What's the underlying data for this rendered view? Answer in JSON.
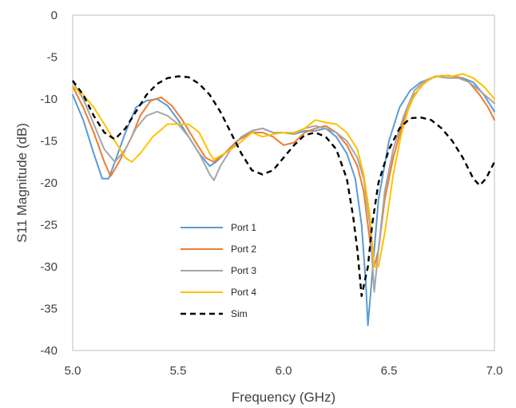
{
  "chart_data": {
    "type": "line",
    "title": "",
    "xlabel": "Frequency (GHz)",
    "ylabel": "S11 Magnitude (dB)",
    "xlim": [
      5.0,
      7.0
    ],
    "ylim": [
      -40,
      0
    ],
    "xticks": [
      "5.0",
      "5.5",
      "6.0",
      "6.5",
      "7.0"
    ],
    "yticks": [
      "0",
      "-5",
      "-10",
      "-15",
      "-20",
      "-25",
      "-30",
      "-35",
      "-40"
    ],
    "grid": false,
    "legend_position": "center-left",
    "series": [
      {
        "name": "Port 1",
        "color": "#5b9bd5",
        "dash": "solid",
        "points": [
          [
            5.0,
            -9.5
          ],
          [
            5.05,
            -12.5
          ],
          [
            5.1,
            -16.5
          ],
          [
            5.14,
            -19.5
          ],
          [
            5.17,
            -19.5
          ],
          [
            5.2,
            -17.5
          ],
          [
            5.25,
            -14
          ],
          [
            5.3,
            -11
          ],
          [
            5.35,
            -10.2
          ],
          [
            5.4,
            -10
          ],
          [
            5.45,
            -10.8
          ],
          [
            5.5,
            -12.5
          ],
          [
            5.55,
            -14.5
          ],
          [
            5.6,
            -16.5
          ],
          [
            5.65,
            -18
          ],
          [
            5.68,
            -17.5
          ],
          [
            5.72,
            -16.5
          ],
          [
            5.78,
            -15
          ],
          [
            5.85,
            -13.8
          ],
          [
            5.9,
            -13.5
          ],
          [
            5.95,
            -14
          ],
          [
            6.0,
            -14
          ],
          [
            6.05,
            -14.2
          ],
          [
            6.1,
            -13.8
          ],
          [
            6.15,
            -13.8
          ],
          [
            6.2,
            -13.5
          ],
          [
            6.25,
            -14.5
          ],
          [
            6.3,
            -16.5
          ],
          [
            6.34,
            -19.5
          ],
          [
            6.37,
            -25
          ],
          [
            6.39,
            -32
          ],
          [
            6.4,
            -37
          ],
          [
            6.42,
            -31
          ],
          [
            6.45,
            -22
          ],
          [
            6.5,
            -15
          ],
          [
            6.55,
            -11
          ],
          [
            6.6,
            -9
          ],
          [
            6.65,
            -8
          ],
          [
            6.7,
            -7.5
          ],
          [
            6.75,
            -7.2
          ],
          [
            6.8,
            -7.3
          ],
          [
            6.85,
            -7.5
          ],
          [
            6.9,
            -8
          ],
          [
            6.95,
            -9.5
          ],
          [
            7.0,
            -11.5
          ]
        ]
      },
      {
        "name": "Port 2",
        "color": "#ed7d31",
        "dash": "solid",
        "points": [
          [
            5.0,
            -8.5
          ],
          [
            5.05,
            -11
          ],
          [
            5.1,
            -14
          ],
          [
            5.15,
            -17.5
          ],
          [
            5.18,
            -19.2
          ],
          [
            5.22,
            -17.5
          ],
          [
            5.28,
            -14.5
          ],
          [
            5.32,
            -12
          ],
          [
            5.37,
            -10.2
          ],
          [
            5.42,
            -9.8
          ],
          [
            5.47,
            -10.8
          ],
          [
            5.52,
            -12.5
          ],
          [
            5.58,
            -15
          ],
          [
            5.63,
            -17
          ],
          [
            5.67,
            -17.5
          ],
          [
            5.72,
            -16.5
          ],
          [
            5.78,
            -15
          ],
          [
            5.85,
            -14
          ],
          [
            5.9,
            -14
          ],
          [
            5.95,
            -14.5
          ],
          [
            6.0,
            -15.5
          ],
          [
            6.05,
            -15.2
          ],
          [
            6.1,
            -14
          ],
          [
            6.15,
            -13.5
          ],
          [
            6.2,
            -13.2
          ],
          [
            6.25,
            -14
          ],
          [
            6.3,
            -15.5
          ],
          [
            6.35,
            -18
          ],
          [
            6.38,
            -21
          ],
          [
            6.41,
            -27
          ],
          [
            6.43,
            -30
          ],
          [
            6.45,
            -28
          ],
          [
            6.48,
            -22
          ],
          [
            6.52,
            -17
          ],
          [
            6.57,
            -12.5
          ],
          [
            6.62,
            -9.5
          ],
          [
            6.67,
            -8
          ],
          [
            6.72,
            -7.3
          ],
          [
            6.78,
            -7.2
          ],
          [
            6.83,
            -7.4
          ],
          [
            6.88,
            -8
          ],
          [
            6.93,
            -9.5
          ],
          [
            6.97,
            -11
          ],
          [
            7.0,
            -12.5
          ]
        ]
      },
      {
        "name": "Port 3",
        "color": "#a5a5a5",
        "dash": "solid",
        "points": [
          [
            5.0,
            -8
          ],
          [
            5.05,
            -10
          ],
          [
            5.1,
            -13
          ],
          [
            5.15,
            -16
          ],
          [
            5.2,
            -17.5
          ],
          [
            5.25,
            -16
          ],
          [
            5.3,
            -13.5
          ],
          [
            5.35,
            -12
          ],
          [
            5.4,
            -11.5
          ],
          [
            5.45,
            -12
          ],
          [
            5.5,
            -13
          ],
          [
            5.55,
            -14.5
          ],
          [
            5.6,
            -16.5
          ],
          [
            5.65,
            -19
          ],
          [
            5.67,
            -19.7
          ],
          [
            5.7,
            -18
          ],
          [
            5.75,
            -16
          ],
          [
            5.8,
            -14.5
          ],
          [
            5.85,
            -13.8
          ],
          [
            5.9,
            -13.5
          ],
          [
            5.95,
            -14
          ],
          [
            6.0,
            -14
          ],
          [
            6.05,
            -14.2
          ],
          [
            6.1,
            -13.5
          ],
          [
            6.15,
            -13.2
          ],
          [
            6.2,
            -13.5
          ],
          [
            6.25,
            -14
          ],
          [
            6.3,
            -15
          ],
          [
            6.35,
            -17
          ],
          [
            6.38,
            -19.5
          ],
          [
            6.41,
            -25
          ],
          [
            6.43,
            -33
          ],
          [
            6.45,
            -28
          ],
          [
            6.48,
            -21
          ],
          [
            6.52,
            -16
          ],
          [
            6.57,
            -12
          ],
          [
            6.62,
            -9
          ],
          [
            6.67,
            -7.8
          ],
          [
            6.72,
            -7.3
          ],
          [
            6.78,
            -7.5
          ],
          [
            6.83,
            -7.5
          ],
          [
            6.88,
            -8
          ],
          [
            6.93,
            -9
          ],
          [
            7.0,
            -10.5
          ]
        ]
      },
      {
        "name": "Port 4",
        "color": "#ffc000",
        "dash": "solid",
        "points": [
          [
            5.0,
            -8.5
          ],
          [
            5.05,
            -9.5
          ],
          [
            5.1,
            -11
          ],
          [
            5.15,
            -13
          ],
          [
            5.2,
            -15
          ],
          [
            5.25,
            -17
          ],
          [
            5.28,
            -17.5
          ],
          [
            5.32,
            -16.5
          ],
          [
            5.38,
            -14.5
          ],
          [
            5.45,
            -13
          ],
          [
            5.5,
            -13
          ],
          [
            5.55,
            -13
          ],
          [
            5.6,
            -14
          ],
          [
            5.65,
            -16.5
          ],
          [
            5.67,
            -17.2
          ],
          [
            5.72,
            -16.5
          ],
          [
            5.78,
            -15.5
          ],
          [
            5.85,
            -14
          ],
          [
            5.9,
            -14.5
          ],
          [
            5.95,
            -14.2
          ],
          [
            6.0,
            -14
          ],
          [
            6.05,
            -14
          ],
          [
            6.1,
            -13.5
          ],
          [
            6.15,
            -12.5
          ],
          [
            6.2,
            -12.8
          ],
          [
            6.25,
            -13
          ],
          [
            6.3,
            -14
          ],
          [
            6.35,
            -16
          ],
          [
            6.38,
            -19
          ],
          [
            6.41,
            -24
          ],
          [
            6.43,
            -30
          ],
          [
            6.45,
            -30
          ],
          [
            6.48,
            -26
          ],
          [
            6.52,
            -19
          ],
          [
            6.56,
            -14
          ],
          [
            6.6,
            -10.5
          ],
          [
            6.65,
            -8.5
          ],
          [
            6.7,
            -7.5
          ],
          [
            6.75,
            -7.2
          ],
          [
            6.8,
            -7.3
          ],
          [
            6.85,
            -7
          ],
          [
            6.9,
            -7.5
          ],
          [
            6.95,
            -8.5
          ],
          [
            7.0,
            -10
          ]
        ]
      },
      {
        "name": "Sim",
        "color": "#000000",
        "dash": "dashed",
        "points": [
          [
            5.0,
            -7.8
          ],
          [
            5.05,
            -9.5
          ],
          [
            5.1,
            -12
          ],
          [
            5.15,
            -14
          ],
          [
            5.2,
            -14.8
          ],
          [
            5.25,
            -13.5
          ],
          [
            5.3,
            -11.5
          ],
          [
            5.35,
            -9.5
          ],
          [
            5.4,
            -8.2
          ],
          [
            5.45,
            -7.5
          ],
          [
            5.5,
            -7.3
          ],
          [
            5.55,
            -7.4
          ],
          [
            5.6,
            -8.2
          ],
          [
            5.65,
            -9.5
          ],
          [
            5.7,
            -11.5
          ],
          [
            5.75,
            -14
          ],
          [
            5.8,
            -16.5
          ],
          [
            5.85,
            -18.5
          ],
          [
            5.9,
            -19
          ],
          [
            5.95,
            -18.5
          ],
          [
            6.0,
            -17
          ],
          [
            6.05,
            -15.5
          ],
          [
            6.1,
            -14.3
          ],
          [
            6.15,
            -14
          ],
          [
            6.2,
            -14.5
          ],
          [
            6.25,
            -16
          ],
          [
            6.3,
            -19.5
          ],
          [
            6.33,
            -24
          ],
          [
            6.35,
            -28
          ],
          [
            6.37,
            -33.5
          ],
          [
            6.4,
            -30
          ],
          [
            6.42,
            -25
          ],
          [
            6.45,
            -20
          ],
          [
            6.5,
            -16
          ],
          [
            6.55,
            -13.5
          ],
          [
            6.6,
            -12.3
          ],
          [
            6.65,
            -12.2
          ],
          [
            6.7,
            -12.5
          ],
          [
            6.75,
            -13.5
          ],
          [
            6.8,
            -15
          ],
          [
            6.85,
            -17
          ],
          [
            6.9,
            -19.5
          ],
          [
            6.93,
            -20.3
          ],
          [
            6.96,
            -19.5
          ],
          [
            7.0,
            -17.5
          ]
        ]
      }
    ]
  }
}
